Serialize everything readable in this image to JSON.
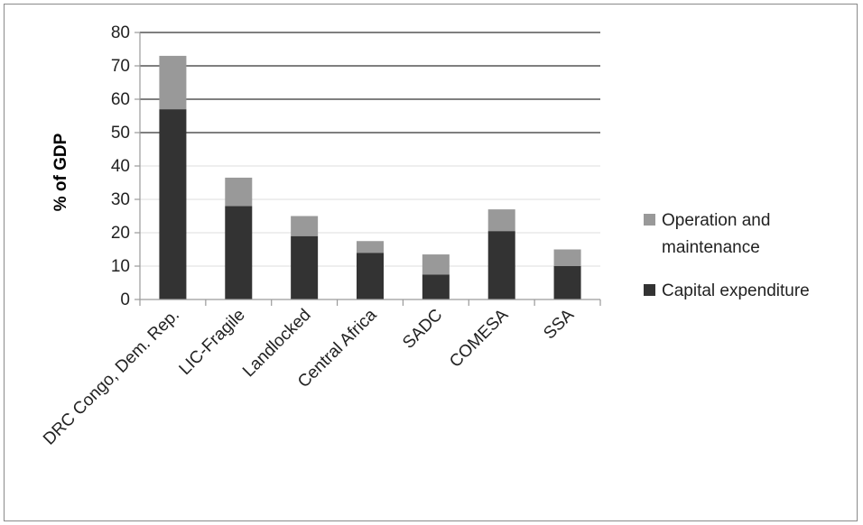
{
  "chart_data": {
    "type": "bar",
    "stacked": true,
    "categories": [
      "DRC Congo, Dem. Rep.",
      "LIC-Fragile",
      "Landlocked",
      "Central Africa",
      "SADC",
      "COMESA",
      "SSA"
    ],
    "series": [
      {
        "name": "Capital expenditure",
        "values": [
          57,
          28,
          19,
          14,
          7.5,
          20.5,
          10
        ],
        "color": "#333333"
      },
      {
        "name": "Operation and maintenance",
        "values": [
          16,
          8.5,
          6,
          3.5,
          6,
          6.5,
          5
        ],
        "color": "#999999"
      }
    ],
    "ylabel": "% of GDP",
    "ylim": [
      0,
      80
    ],
    "yticks": [
      0,
      10,
      20,
      30,
      40,
      50,
      60,
      70,
      80
    ],
    "grid": true,
    "legend": {
      "position": "right",
      "entries": [
        {
          "label_lines": [
            "Operation and",
            "maintenance"
          ],
          "color": "#999999"
        },
        {
          "label_lines": [
            "Capital expenditure"
          ],
          "color": "#333333"
        }
      ]
    }
  }
}
